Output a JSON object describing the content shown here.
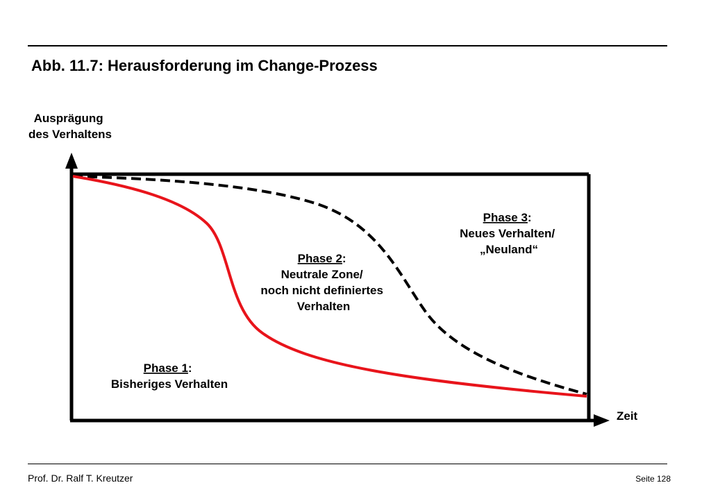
{
  "page": {
    "title": "Abb. 11.7: Herausforderung im Change-Prozess",
    "author": "Prof. Dr. Ralf T. Kreutzer",
    "page_label": "Seite 128"
  },
  "diagram": {
    "y_axis_label": [
      "Ausprägung",
      "des Verhaltens"
    ],
    "x_axis_label": "Zeit",
    "phase1": {
      "name": "Phase 1",
      "suffix": ":",
      "lines": [
        "Bisheriges Verhalten"
      ]
    },
    "phase2": {
      "name": "Phase 2",
      "suffix": ":",
      "lines": [
        "Neutrale Zone/",
        "noch nicht definiertes",
        "Verhalten"
      ]
    },
    "phase3": {
      "name": "Phase 3",
      "suffix": ":",
      "lines": [
        "Neues Verhalten/",
        "„Neuland“"
      ]
    },
    "colors": {
      "solid_curve": "#e8141b",
      "dashed_curve": "#000000",
      "axes": "#000000"
    }
  }
}
